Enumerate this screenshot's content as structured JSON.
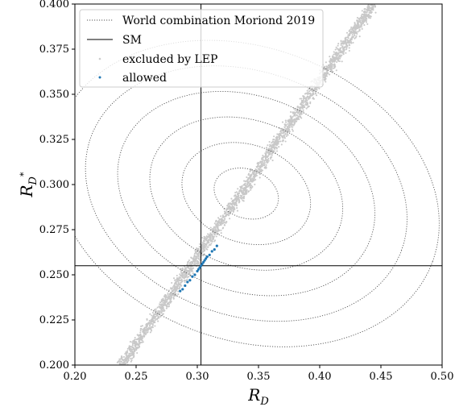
{
  "chart_data": {
    "type": "scatter",
    "title": "",
    "xlabel": "R_D",
    "ylabel": "R_{D*}",
    "xlabel_main": "R",
    "xlabel_sub": "D",
    "ylabel_main": "R",
    "ylabel_sub": "D",
    "ylabel_sup": "*",
    "xlim": [
      0.2,
      0.5
    ],
    "ylim": [
      0.2,
      0.4
    ],
    "xticks": [
      0.2,
      0.25,
      0.3,
      0.35,
      0.4,
      0.45,
      0.5
    ],
    "xtick_labels": [
      "0.20",
      "0.25",
      "0.30",
      "0.35",
      "0.40",
      "0.45",
      "0.50"
    ],
    "yticks": [
      0.2,
      0.225,
      0.25,
      0.275,
      0.3,
      0.325,
      0.35,
      0.375,
      0.4
    ],
    "ytick_labels": [
      "0.200",
      "0.225",
      "0.250",
      "0.275",
      "0.300",
      "0.325",
      "0.350",
      "0.375",
      "0.400"
    ],
    "grid": false,
    "legend_position": "top-left",
    "legend": [
      {
        "label": "World combination Moriond 2019",
        "style": "dotted-line",
        "color": "#555555"
      },
      {
        "label": "SM",
        "style": "solid-line",
        "color": "#000000"
      },
      {
        "label": "excluded by LEP",
        "style": "marker",
        "color": "#cccccc"
      },
      {
        "label": "allowed",
        "style": "marker",
        "color": "#1f77b4"
      }
    ],
    "world_combination_center": {
      "x": 0.34,
      "y": 0.295
    },
    "world_combination_ellipses": [
      {
        "sigma": 1,
        "rx": 0.027,
        "ry": 0.0135
      },
      {
        "sigma": 2,
        "rx": 0.054,
        "ry": 0.027
      },
      {
        "sigma": 3,
        "rx": 0.081,
        "ry": 0.0405
      },
      {
        "sigma": 4,
        "rx": 0.108,
        "ry": 0.054
      },
      {
        "sigma": 5,
        "rx": 0.135,
        "ry": 0.0675
      },
      {
        "sigma": 6,
        "rx": 0.162,
        "ry": 0.081
      }
    ],
    "sm_line": {
      "x": 0.303,
      "y": 0.255
    },
    "excluded_by_LEP_band": {
      "x_start": 0.238,
      "y_start": 0.2,
      "x_end": 0.444,
      "y_end": 0.4
    },
    "allowed_points": [
      {
        "x": 0.286,
        "y": 0.241
      },
      {
        "x": 0.288,
        "y": 0.242
      },
      {
        "x": 0.29,
        "y": 0.244
      },
      {
        "x": 0.292,
        "y": 0.246
      },
      {
        "x": 0.294,
        "y": 0.247
      },
      {
        "x": 0.296,
        "y": 0.249
      },
      {
        "x": 0.298,
        "y": 0.25
      },
      {
        "x": 0.3,
        "y": 0.252
      },
      {
        "x": 0.301,
        "y": 0.253
      },
      {
        "x": 0.302,
        "y": 0.254
      },
      {
        "x": 0.303,
        "y": 0.255
      },
      {
        "x": 0.304,
        "y": 0.256
      },
      {
        "x": 0.305,
        "y": 0.257
      },
      {
        "x": 0.306,
        "y": 0.258
      },
      {
        "x": 0.307,
        "y": 0.259
      },
      {
        "x": 0.308,
        "y": 0.26
      },
      {
        "x": 0.31,
        "y": 0.261
      },
      {
        "x": 0.312,
        "y": 0.263
      },
      {
        "x": 0.314,
        "y": 0.264
      },
      {
        "x": 0.316,
        "y": 0.266
      }
    ],
    "colors": {
      "allowed": "#1f77b4",
      "excluded": "#c8c8c8",
      "contour": "#555555",
      "sm": "#000000"
    }
  }
}
